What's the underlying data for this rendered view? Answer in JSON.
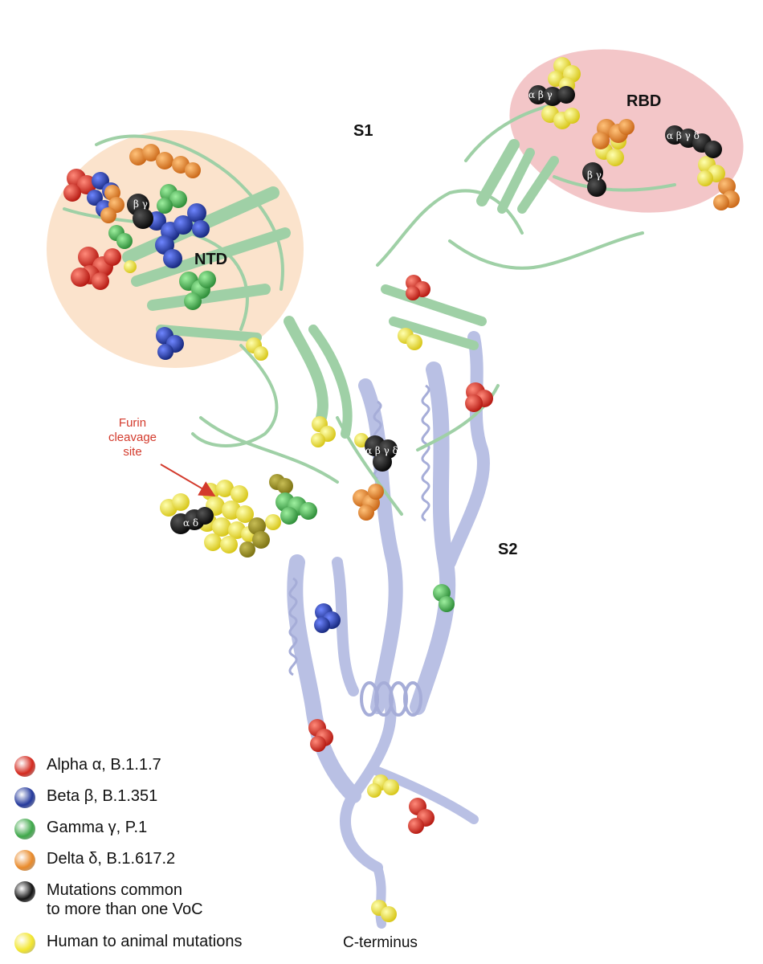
{
  "labels": {
    "s1": "S1",
    "s2": "S2",
    "ntd": "NTD",
    "rbd": "RBD",
    "furin": "Furin\ncleavage\nsite",
    "c_terminus": "C-terminus"
  },
  "legend": [
    {
      "label": "Alpha α, B.1.1.7",
      "color": "#d42a1f"
    },
    {
      "label": "Beta β, B.1.351",
      "color": "#24399c"
    },
    {
      "label": "Gamma γ, P.1",
      "color": "#3fa84a"
    },
    {
      "label": "Delta δ, B.1.617.2",
      "color": "#e98a2a"
    },
    {
      "label": "Mutations common\nto more than one VoC",
      "color": "#141414"
    },
    {
      "label": "Human to animal mutations",
      "color": "#f2e62f"
    }
  ],
  "cluster_labels": {
    "ntd_black": "β γ",
    "rbd_black_top": "α β γ",
    "rbd_black_right": "α β γ δ",
    "rbd_black_mid": "β γ",
    "center_black": "α β γ δ",
    "furin_black": "α δ"
  },
  "colors": {
    "ntd_region": "#fbe3cc",
    "rbd_region": "#f3c6c8",
    "s1_ribbon": "#9fd0a6",
    "s2_ribbon": "#b9c0e4",
    "furin_arrow": "#d33a2c"
  }
}
